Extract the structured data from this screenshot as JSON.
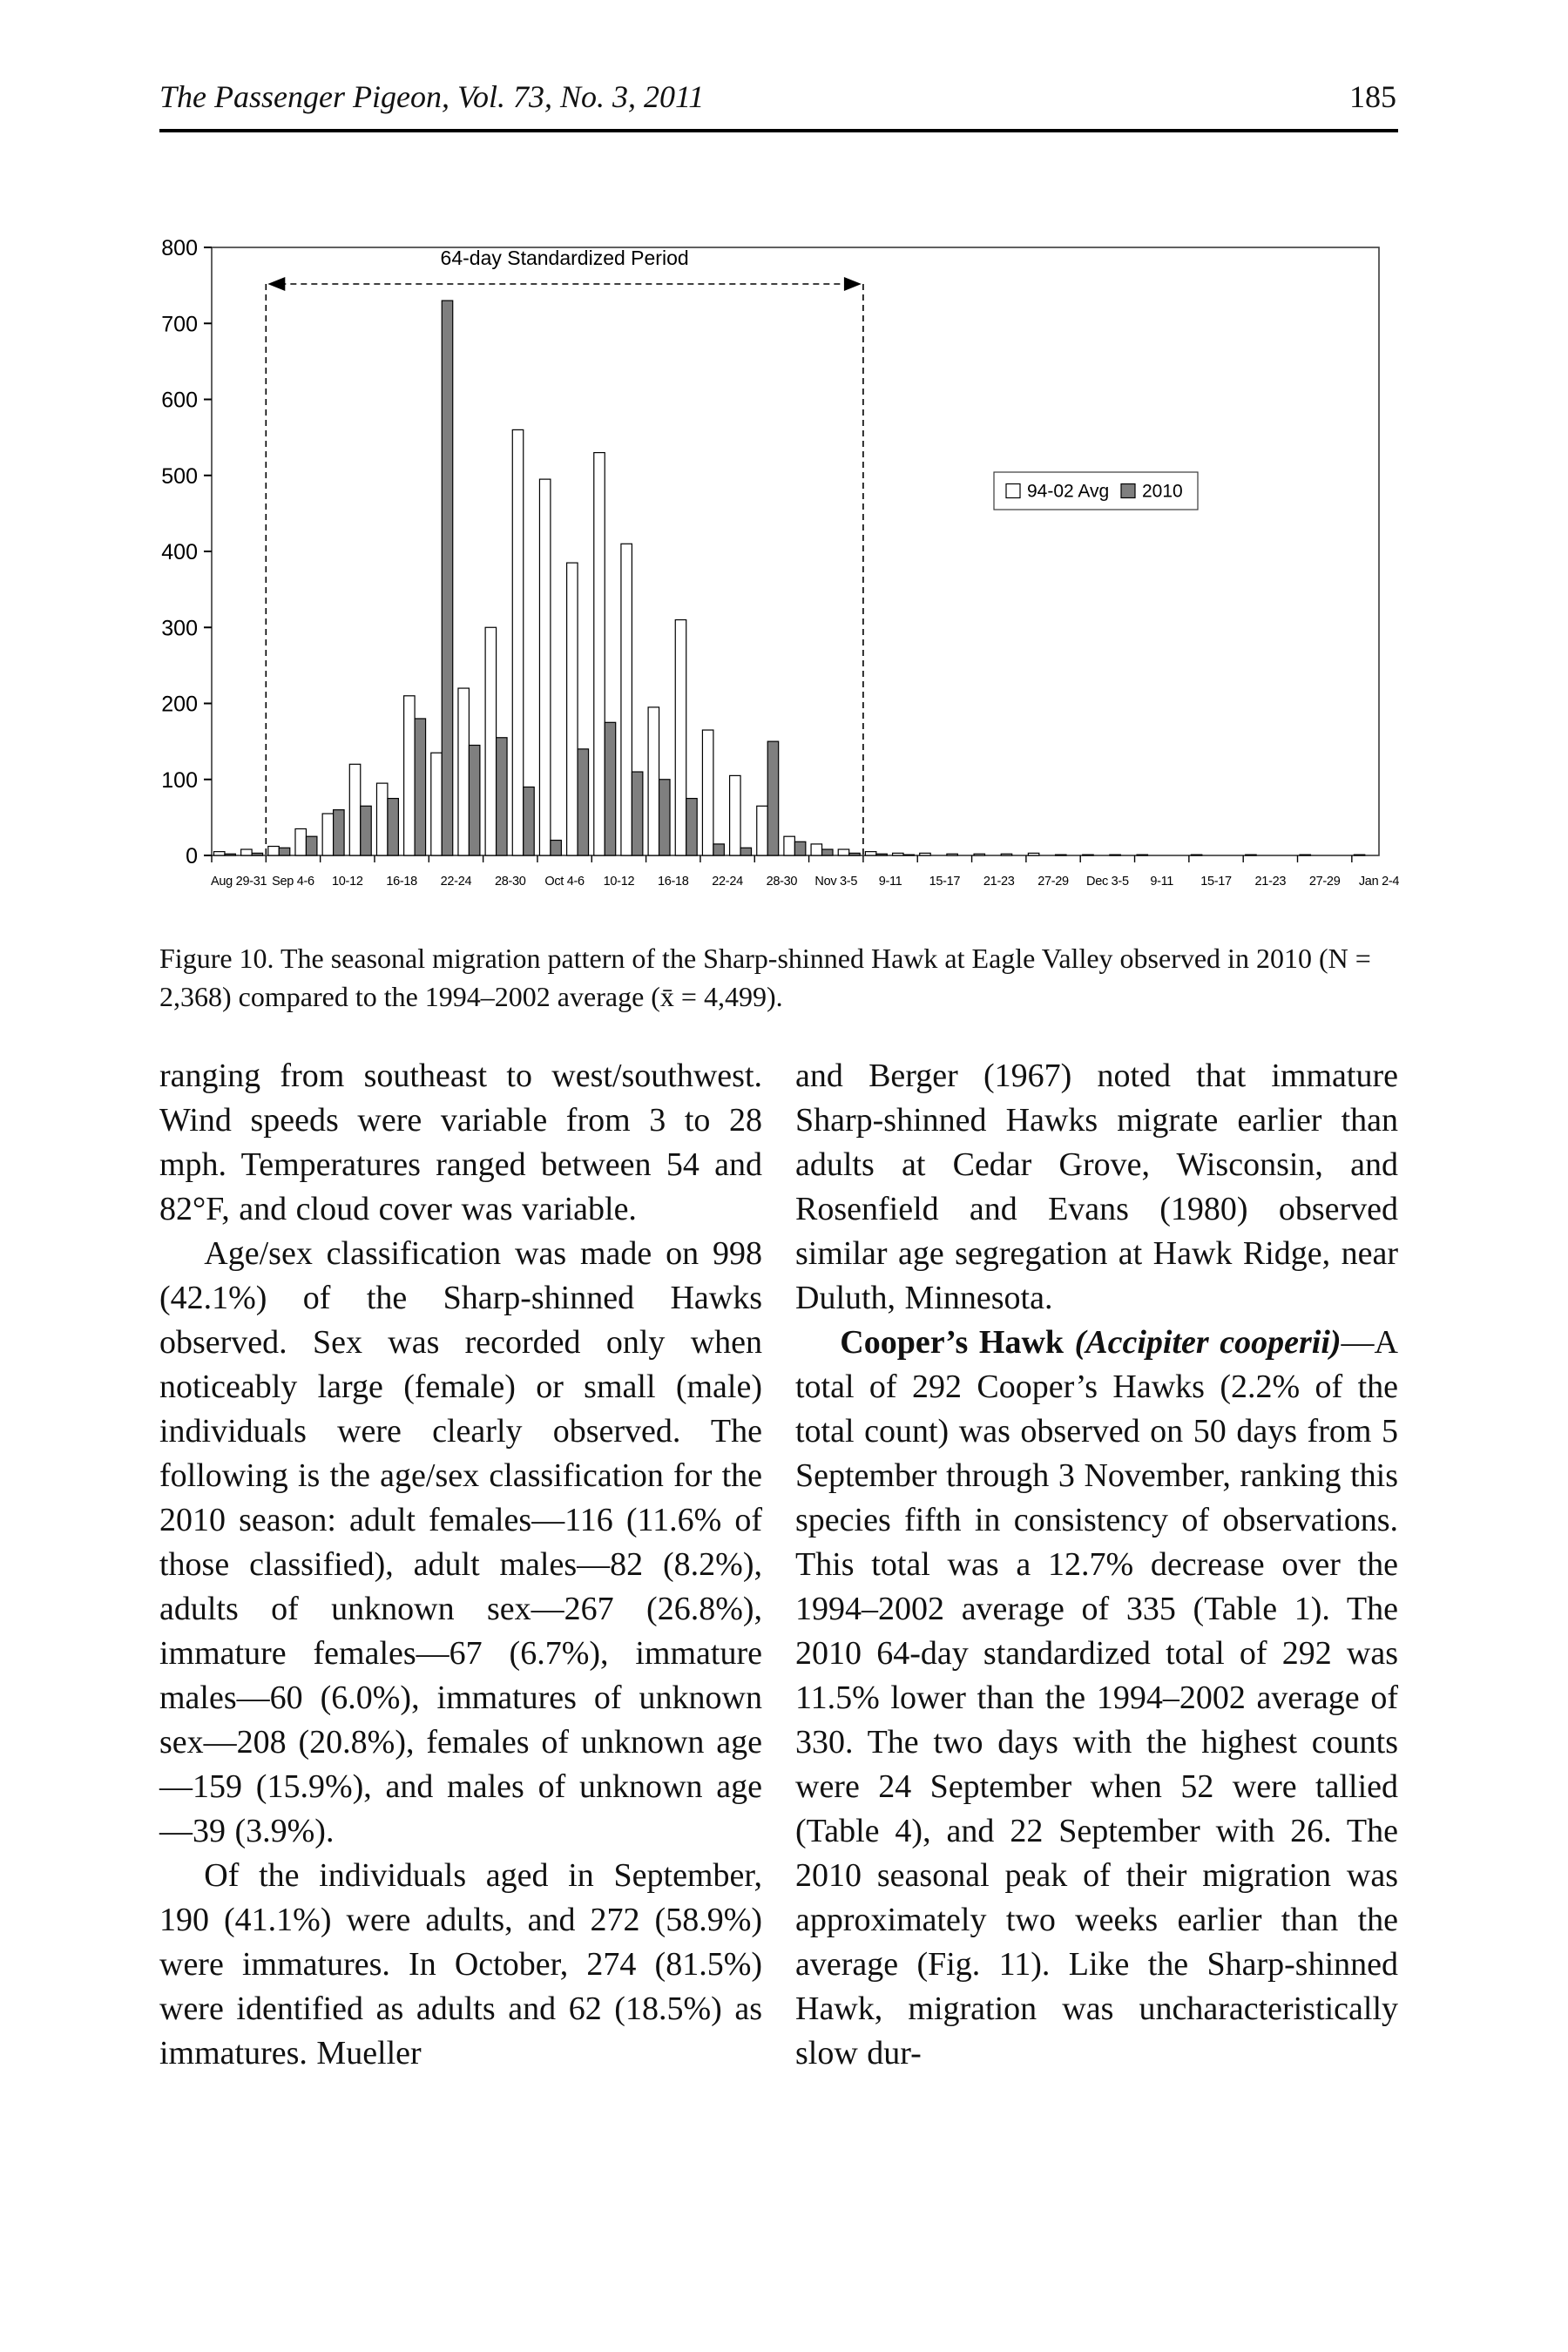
{
  "header": {
    "journal_title": "The Passenger Pigeon, Vol. 73, No. 3, 2011",
    "page_number": "185"
  },
  "figure": {
    "caption": "Figure 10. The seasonal migration pattern of the Sharp-shinned Hawk at Eagle Valley observed in 2010 (N = 2,368) compared to the 1994–2002 average (x̄ = 4,499)."
  },
  "chart_data": {
    "type": "bar",
    "title": "",
    "annotation": "64-day Standardized Period",
    "ylim": [
      0,
      800
    ],
    "ytick_step": 100,
    "grid": false,
    "legend_position": "inside-right",
    "x_tick_labels": [
      "Aug 29-31",
      "Sep 4-6",
      "10-12",
      "16-18",
      "22-24",
      "28-30",
      "Oct 4-6",
      "10-12",
      "16-18",
      "22-24",
      "28-30",
      "Nov 3-5",
      "9-11",
      "15-17",
      "21-23",
      "27-29",
      "Dec 3-5",
      "9-11",
      "15-17",
      "21-23",
      "27-29",
      "Jan 2-4"
    ],
    "label_every_n_slots": 2,
    "standardized_period_slots": [
      2,
      24
    ],
    "bar_outline": "#000000",
    "series": [
      {
        "name": "94-02 Avg",
        "fill": "#ffffff",
        "values": [
          5,
          8,
          12,
          35,
          55,
          120,
          95,
          210,
          135,
          220,
          300,
          560,
          495,
          385,
          530,
          410,
          195,
          310,
          165,
          105,
          65,
          25,
          15,
          8,
          5,
          3,
          3,
          2,
          2,
          2,
          3,
          1,
          1,
          1,
          1,
          0,
          1,
          0,
          1,
          0,
          1,
          0,
          1
        ]
      },
      {
        "name": "2010",
        "fill": "#7f7f7f",
        "values": [
          2,
          3,
          10,
          25,
          60,
          65,
          75,
          180,
          730,
          145,
          155,
          90,
          20,
          140,
          175,
          110,
          100,
          75,
          15,
          10,
          150,
          18,
          8,
          3,
          2,
          1,
          0,
          0,
          0,
          0,
          0,
          0,
          0,
          0,
          0,
          0,
          0,
          0,
          0,
          0,
          0,
          0,
          0
        ]
      }
    ]
  },
  "body": {
    "left": {
      "p1": "ranging from southeast to west/southwest. Wind speeds were variable from 3 to 28 mph. Temperatures ranged between 54 and 82°F, and cloud cover was variable.",
      "p2": "Age/sex classification was made on 998 (42.1%) of the Sharp-shinned Hawks observed. Sex was recorded only when noticeably large (female) or small (male) individuals were clearly observed. The following is the age/sex classification for the 2010 season: adult females—116 (11.6% of those classified), adult males—82 (8.2%), adults of unknown sex—267 (26.8%), immature females—67 (6.7%), immature males—60 (6.0%), immatures of unknown sex—208 (20.8%), females of unknown age—159 (15.9%), and males of unknown age—39 (3.9%).",
      "p3": "Of the individuals aged in September, 190 (41.1%) were adults, and 272 (58.9%) were immatures. In October, 274 (81.5%) were identified as adults and 62 (18.5%) as immatures. Mueller"
    },
    "right": {
      "p1": "and Berger (1967) noted that immature Sharp-shinned Hawks migrate earlier than adults at Cedar Grove, Wisconsin, and Rosenfield and Evans (1980) observed similar age segregation at Hawk Ridge, near Duluth, Minnesota.",
      "p2_bold": "Cooper’s Hawk",
      "p2_species": "(Accipiter cooperii)",
      "p2_rest": "—A total of 292 Cooper’s Hawks (2.2% of the total count) was observed on 50 days from 5 September through 3 November, ranking this species fifth in consistency of observations. This total was a 12.7% decrease over the 1994–2002 average of 335 (Table 1). The 2010 64-day standardized total of 292 was 11.5% lower than the 1994–2002 average of 330. The two days with the highest counts were 24 September when 52 were tallied (Table 4), and 22 September with 26. The 2010 seasonal peak of their migration was approximately two weeks earlier than the average (Fig. 11). Like the Sharp-shinned Hawk, migration was uncharacteristically slow dur-"
    }
  }
}
